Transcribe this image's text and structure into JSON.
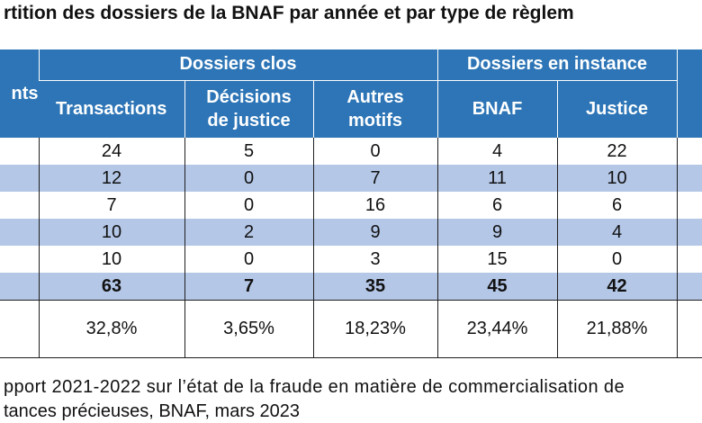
{
  "title": "rtition des dossiers de la BNAF par année et par type de règlem",
  "table": {
    "first_col_header": "nts",
    "group_closed": "Dossiers clos",
    "group_pending": "Dossiers en instance",
    "columns": [
      "Transactions",
      "Décisions de justice",
      "Autres motifs",
      "BNAF",
      "Justice"
    ],
    "column_lines": {
      "decisions": [
        "Décisions",
        "de justice"
      ],
      "autres": [
        "Autres",
        "motifs"
      ]
    },
    "rows": [
      [
        "24",
        "5",
        "0",
        "4",
        "22"
      ],
      [
        "12",
        "0",
        "7",
        "11",
        "10"
      ],
      [
        "7",
        "0",
        "16",
        "6",
        "6"
      ],
      [
        "10",
        "2",
        "9",
        "9",
        "4"
      ],
      [
        "10",
        "0",
        "3",
        "15",
        "0"
      ]
    ],
    "total": [
      "63",
      "7",
      "35",
      "45",
      "42"
    ],
    "percent": [
      "32,8%",
      "3,65%",
      "18,23%",
      "23,44%",
      "21,88%"
    ]
  },
  "source": {
    "line1": "pport 2021-2022 sur l’état de la fraude en matière de commercialisation de",
    "line2": "tances précieuses, BNAF, mars 2023"
  },
  "colors": {
    "header_blue": "#2d75b6",
    "row_band": "#b4c7e7"
  }
}
